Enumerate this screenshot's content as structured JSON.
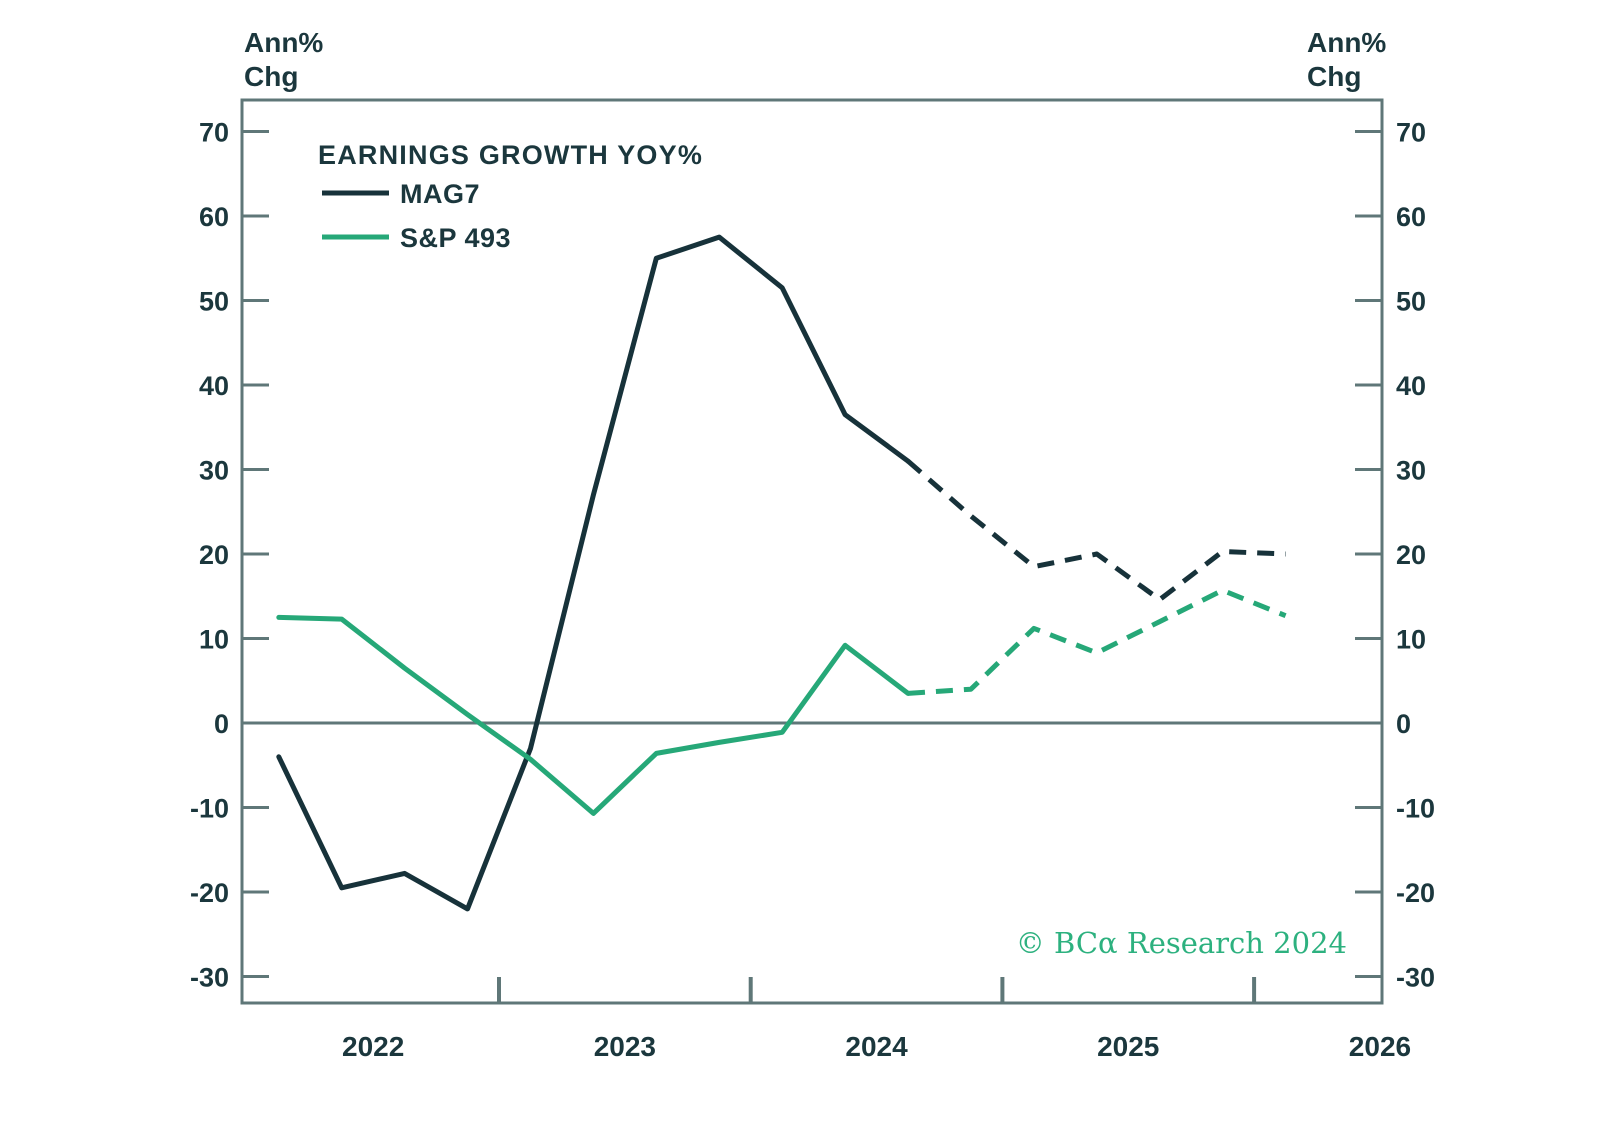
{
  "page": {
    "left_axis_unit_line1": "Ann%",
    "left_axis_unit_line2": "Chg",
    "right_axis_unit_line1": "Ann%",
    "right_axis_unit_line2": "Chg",
    "watermark": "© BCα Research 2024"
  },
  "legend": {
    "title": "EARNINGS GROWTH YOY%",
    "items": [
      {
        "label": "MAG7",
        "color": "#17323a"
      },
      {
        "label": "S&P 493",
        "color": "#26a878"
      }
    ],
    "position": "top-left"
  },
  "colors": {
    "axis": "#5f7778",
    "text": "#1b373d",
    "background": "#ffffff",
    "mag7_line": "#17323a",
    "sp493_line": "#26a878",
    "watermark_green": "#2db17f"
  },
  "chart_data": {
    "type": "line",
    "title": "EARNINGS GROWTH YOY%",
    "x_unit": "quarterly",
    "categories": [
      "2022 Q1",
      "2022 Q2",
      "2022 Q3",
      "2022 Q4",
      "2023 Q1",
      "2023 Q2",
      "2023 Q3",
      "2023 Q4",
      "2024 Q1",
      "2024 Q2",
      "2024 Q3",
      "2024 Q4",
      "2025 Q1",
      "2025 Q2",
      "2025 Q3",
      "2025 Q4",
      "2026 Q1"
    ],
    "series": [
      {
        "name": "MAG7",
        "color": "#17323a",
        "values": [
          -4,
          -19.5,
          -17.8,
          -22,
          -3,
          27,
          55,
          57.5,
          51.5,
          36.5,
          31,
          24.5,
          18.5,
          20,
          14.6,
          20.3,
          20
        ],
        "forecast_dashed_from_index": 10
      },
      {
        "name": "S&P 493",
        "color": "#26a878",
        "values": [
          12.5,
          12.3,
          6.5,
          1,
          -4.3,
          -10.7,
          -3.6,
          -2.3,
          -1.1,
          9.2,
          3.5,
          4,
          11.2,
          8.3,
          12,
          15.7,
          12.7
        ],
        "forecast_dashed_from_index": 10
      }
    ],
    "ylabel_left": "Ann% Chg",
    "ylabel_right": "Ann% Chg",
    "ylim": [
      -30,
      70
    ],
    "yticks": [
      70,
      60,
      50,
      40,
      30,
      20,
      10,
      0,
      -10,
      -20,
      -30
    ],
    "x_year_boundary_ticks": [
      2023,
      2024,
      2025,
      2026
    ],
    "x_year_labels": [
      "2022",
      "2023",
      "2024",
      "2025",
      "2026"
    ],
    "zero_line": true,
    "grid": false,
    "legend_position": "top-left"
  }
}
